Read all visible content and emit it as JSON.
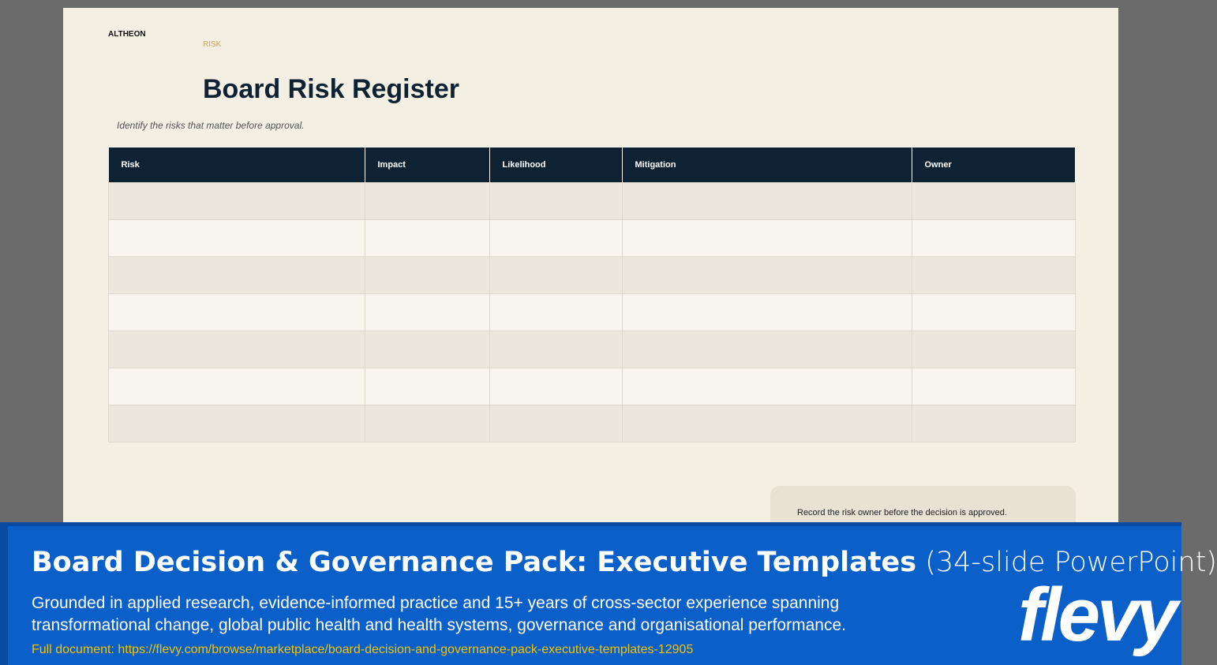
{
  "slide": {
    "brand": "ALTHEON",
    "section": "RISK",
    "title": "Board Risk Register",
    "subtitle": "Identify the risks that matter before approval.",
    "table": {
      "headers": [
        "Risk",
        "Impact",
        "Likelihood",
        "Mitigation",
        "Owner"
      ]
    },
    "note": "Record the risk owner before the decision is approved."
  },
  "banner": {
    "title": "Board Decision & Governance Pack: Executive Templates",
    "title_suffix": "(34-slide PowerPoint)",
    "description_line1": "Grounded in applied research, evidence-informed practice and 15+ years of cross-sector experience spanning",
    "description_line2": "transformational change, global public health and health systems, governance and organisational performance.",
    "link": "Full document: https://flevy.com/browse/marketplace/board-decision-and-governance-pack-executive-templates-12905",
    "logo": "flevy"
  }
}
